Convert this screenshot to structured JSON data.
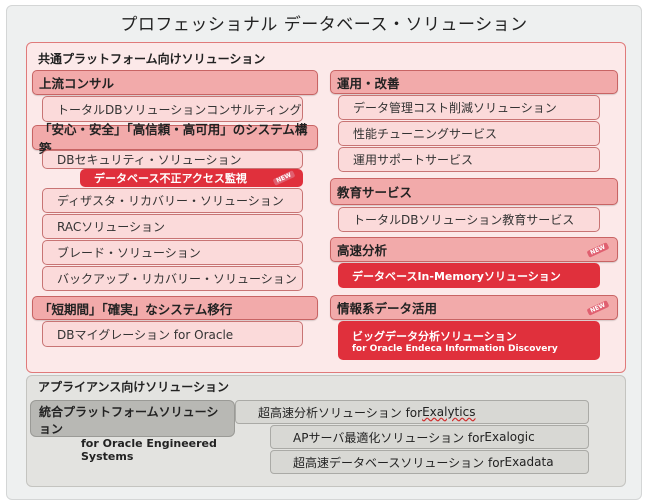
{
  "title": "プロフェッショナル データベース・ソリューション",
  "common": {
    "heading": "共通プラットフォーム向けソリューション",
    "left": [
      {
        "header": "上流コンサル",
        "items": [
          "トータルDBソリューションコンサルティング"
        ]
      },
      {
        "header": "「安心・安全」「高信頼・高可用」のシステム構築",
        "items": [
          "DBセキュリティ・ソリューション"
        ],
        "highlight": "データベース不正アクセス監視",
        "more": [
          "ディザスタ・リカバリー・ソリューション",
          "RACソリューション",
          "ブレード・ソリューション",
          "バックアップ・リカバリー・ソリューション"
        ]
      },
      {
        "header": "「短期間」「確実」なシステム移行",
        "items": [
          "DBマイグレーション for Oracle"
        ]
      }
    ],
    "right": [
      {
        "header": "運用・改善",
        "items": [
          "データ管理コスト削減ソリューション",
          "性能チューニングサービス",
          "運用サポートサービス"
        ]
      },
      {
        "header": "教育サービス",
        "items": [
          "トータルDBソリューション教育サービス"
        ]
      },
      {
        "header": "高速分析",
        "highlight": "データベースIn-Memoryソリューション"
      },
      {
        "header": "情報系データ活用",
        "highlight_line1": "ビッグデータ分析ソリューション",
        "highlight_line2": "for Oracle Endeca Information Discovery"
      }
    ]
  },
  "badge": "NEW",
  "appliance": {
    "heading": "アプライアンス向けソリューション",
    "main_line1": "統合プラットフォームソリューション",
    "main_line2": "for Oracle Engineered Systems",
    "items": [
      {
        "pre": "超高速分析ソリューション for ",
        "name": "Exalytics"
      },
      {
        "pre": "APサーバ最適化ソリューション for ",
        "name": "Exalogic"
      },
      {
        "pre": "超高速データベースソリューション for ",
        "name": "Exadata"
      }
    ]
  },
  "colors": {
    "accent_red": "#e0303c",
    "pink_panel": "#fce9e9",
    "header_pink": "#f2aaaa",
    "gray_panel": "#e3e3e0"
  }
}
